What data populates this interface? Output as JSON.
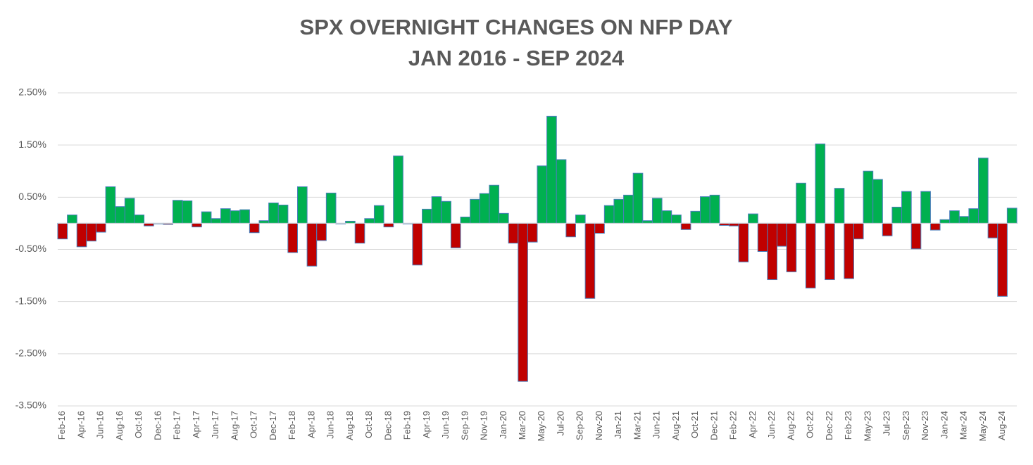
{
  "chart_data": {
    "type": "bar",
    "title": "SPX OVERNIGHT CHANGES ON NFP DAY",
    "subtitle": "JAN 2016 - SEP 2024",
    "categories": [
      "Feb-16",
      null,
      "Apr-16",
      null,
      "Jun-16",
      null,
      "Aug-16",
      null,
      "Oct-16",
      null,
      "Dec-16",
      null,
      "Feb-17",
      null,
      "Apr-17",
      null,
      "Jun-17",
      null,
      "Aug-17",
      null,
      "Oct-17",
      null,
      "Dec-17",
      null,
      "Feb-18",
      null,
      "Apr-18",
      null,
      "Jun-18",
      null,
      "Aug-18",
      null,
      "Oct-18",
      null,
      "Dec-18",
      null,
      "Feb-19",
      null,
      "Apr-19",
      null,
      "Jun-19",
      null,
      "Sep-19",
      null,
      "Nov-19",
      null,
      "Jan-20",
      null,
      "Mar-20",
      null,
      "May-20",
      null,
      "Jul-20",
      null,
      "Sep-20",
      null,
      "Nov-20",
      null,
      "Jan-21",
      null,
      "Mar-21",
      null,
      "Jun-21",
      null,
      "Aug-21",
      null,
      "Oct-21",
      null,
      "Dec-21",
      null,
      "Feb-22",
      null,
      "Apr-22",
      null,
      "Jun-22",
      null,
      "Aug-22",
      null,
      "Oct-22",
      null,
      "Dec-22",
      null,
      "Feb-23",
      null,
      "May-23",
      null,
      "Jul-23",
      null,
      "Sep-23",
      null,
      "Nov-23",
      null,
      "Jan-24",
      null,
      "Mar-24",
      null,
      "May-24",
      null,
      "Aug-24",
      null
    ],
    "values": [
      -0.3,
      0.16,
      -0.45,
      -0.34,
      -0.17,
      0.7,
      0.32,
      0.48,
      0.16,
      -0.05,
      -0.01,
      -0.02,
      0.44,
      0.43,
      -0.07,
      0.22,
      0.09,
      0.28,
      0.24,
      0.26,
      -0.18,
      0.05,
      0.39,
      0.35,
      -0.56,
      0.7,
      -0.82,
      -0.33,
      0.58,
      -0.01,
      0.04,
      -0.38,
      0.09,
      0.34,
      -0.07,
      1.29,
      -0.01,
      -0.8,
      0.27,
      0.51,
      0.42,
      -0.47,
      0.12,
      0.46,
      0.57,
      0.73,
      0.19,
      -0.38,
      -3.03,
      -0.36,
      1.1,
      2.05,
      1.22,
      -0.26,
      0.16,
      -1.44,
      -0.19,
      0.34,
      0.46,
      0.54,
      0.96,
      0.05,
      0.48,
      0.24,
      0.16,
      -0.12,
      0.23,
      0.51,
      0.54,
      -0.04,
      -0.05,
      -0.74,
      0.18,
      -0.54,
      -1.08,
      -0.44,
      -0.93,
      0.77,
      -1.24,
      1.52,
      -1.08,
      0.67,
      -1.06,
      -0.3,
      1.0,
      0.84,
      -0.24,
      0.31,
      0.61,
      -0.49,
      0.61,
      -0.13,
      0.07,
      0.24,
      0.13,
      0.28,
      1.25,
      -0.28,
      -1.4,
      0.29
    ],
    "positive_color": "#00b050",
    "negative_color": "#c00000",
    "edge_color": "#4a7ebb",
    "ylim": [
      -3.5,
      2.5
    ],
    "yticks": [
      {
        "value": 2.5,
        "label": "2.50%"
      },
      {
        "value": 1.5,
        "label": "1.50%"
      },
      {
        "value": 0.5,
        "label": "0.50%"
      },
      {
        "value": -0.5,
        "label": "-0.50%"
      },
      {
        "value": -1.5,
        "label": "-1.50%"
      },
      {
        "value": -2.5,
        "label": "-2.50%"
      },
      {
        "value": -3.5,
        "label": "-3.50%"
      }
    ],
    "grid": true
  }
}
